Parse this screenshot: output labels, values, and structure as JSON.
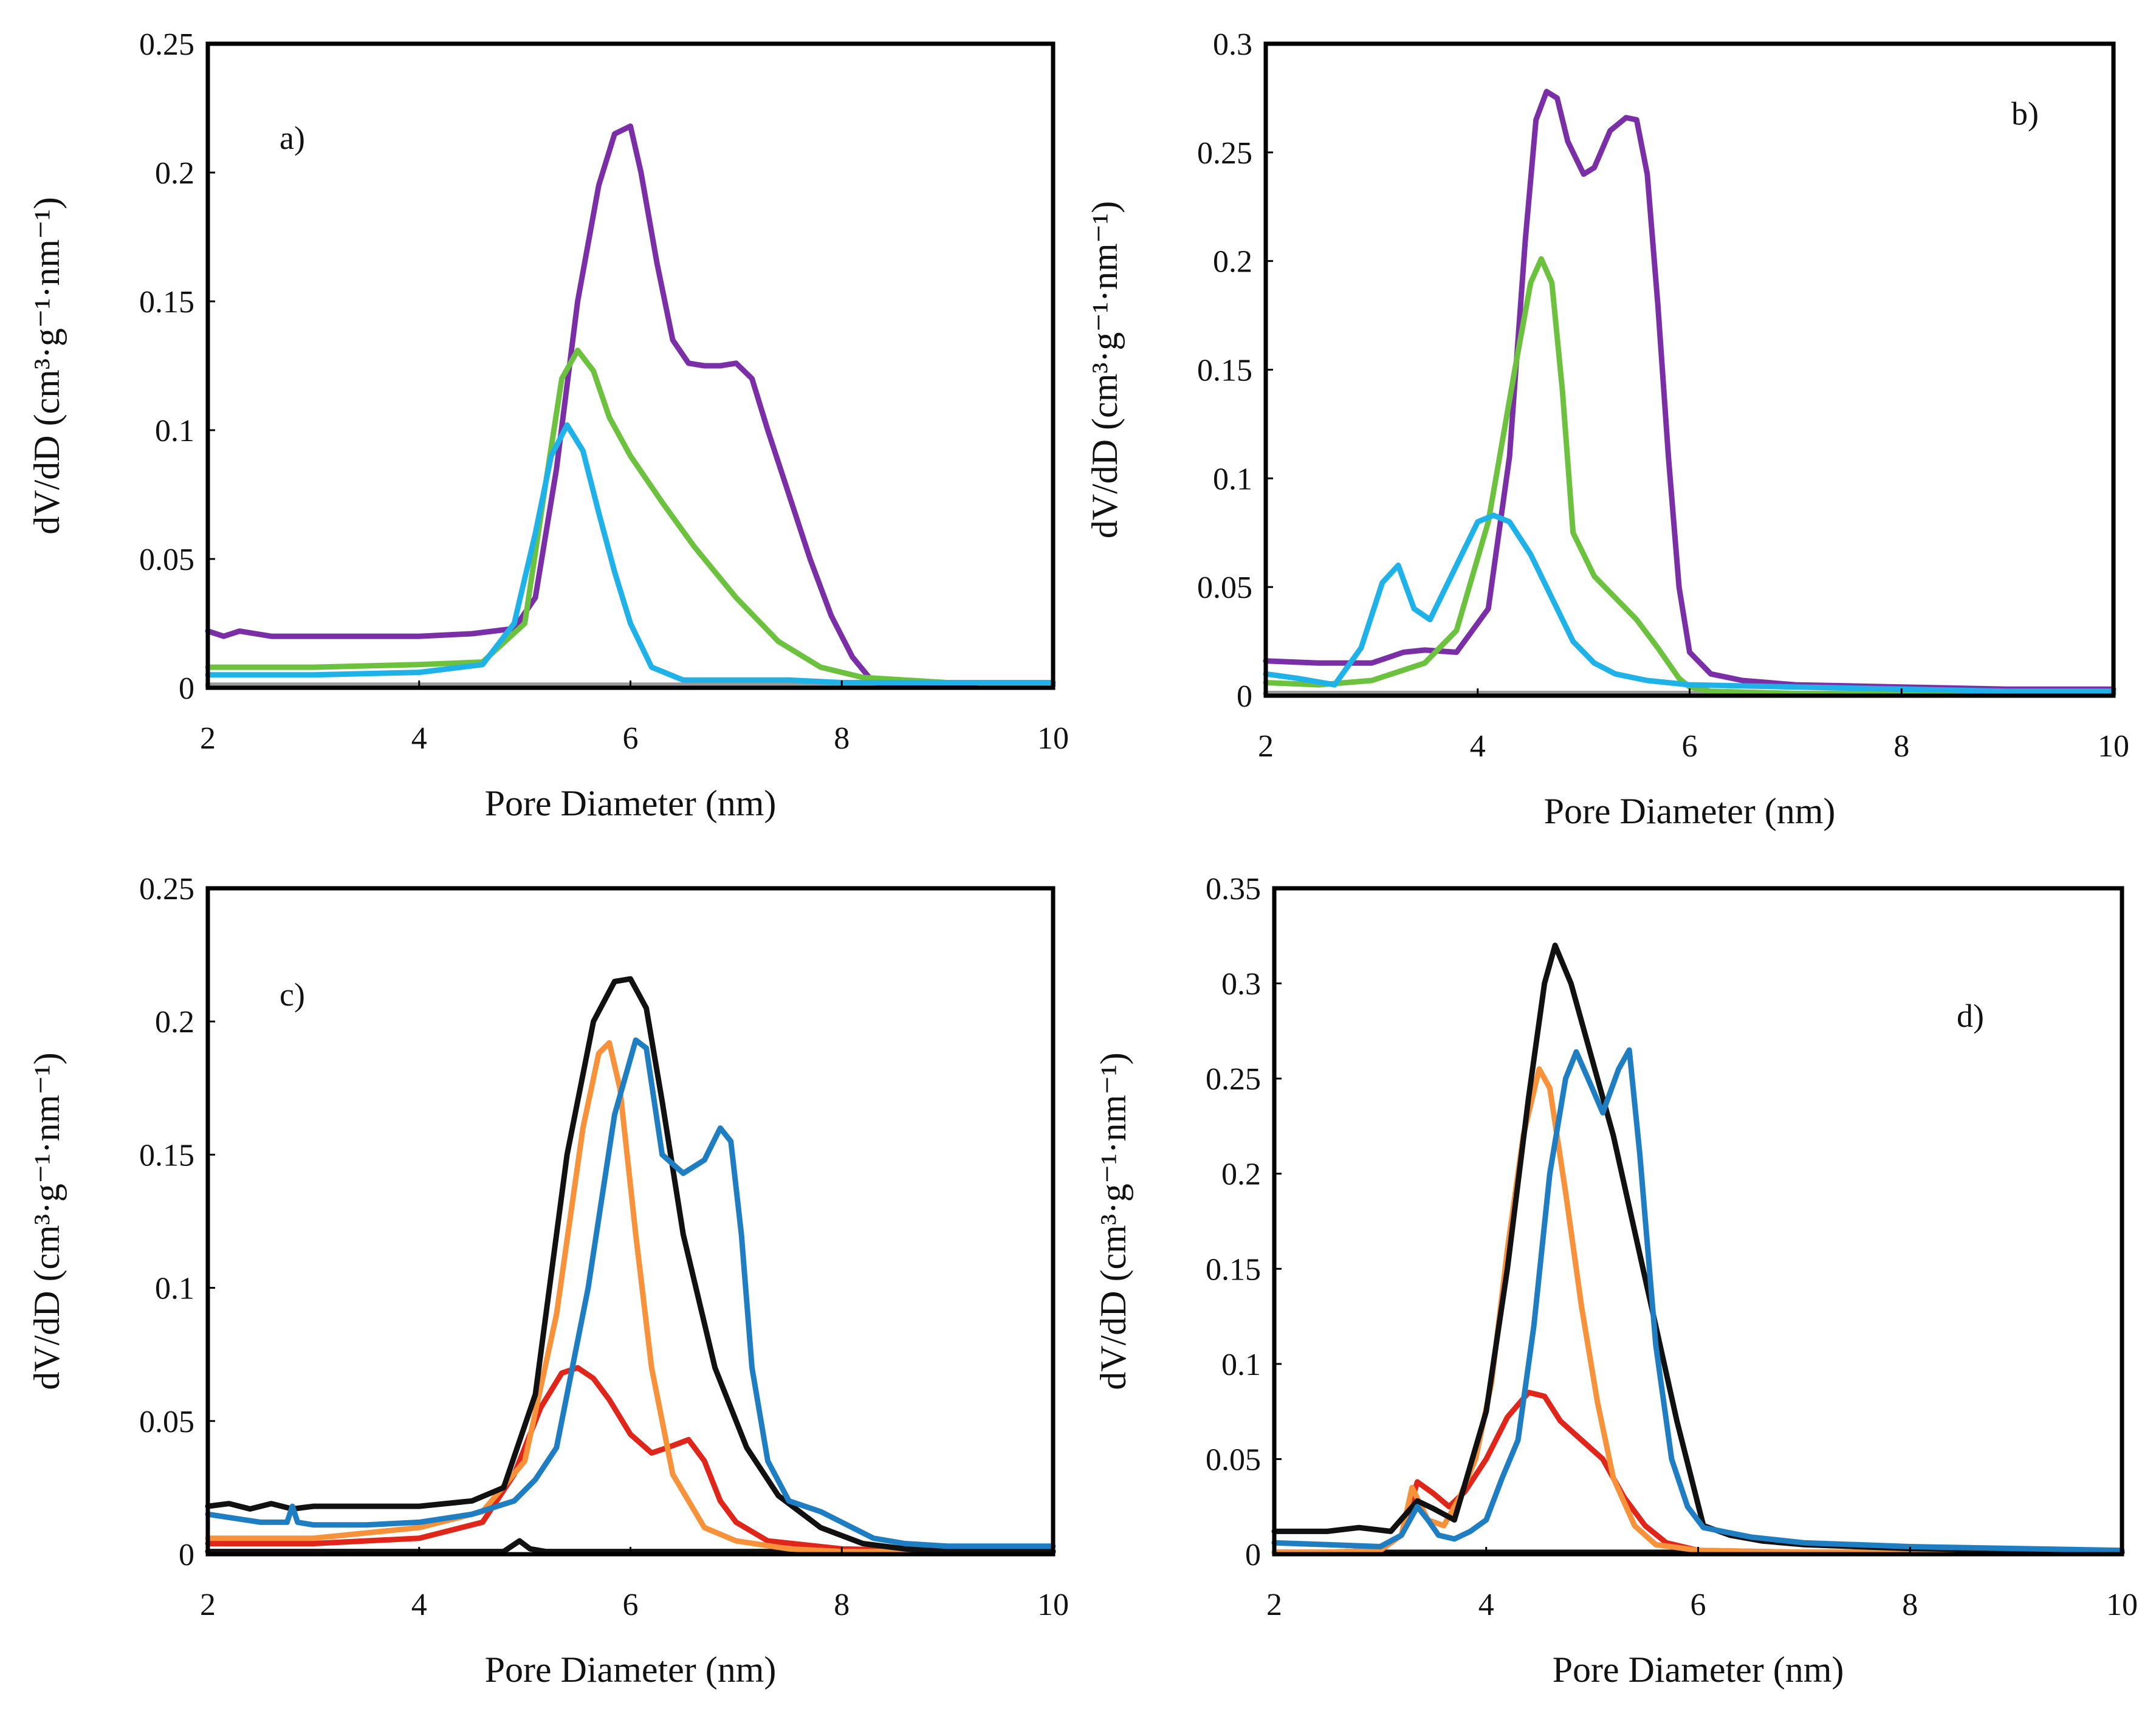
{
  "chart_data": [
    {
      "panel": "a)",
      "type": "line",
      "xlabel": "Pore Diameter (nm)",
      "ylabel": "dV/dD (cm³·g⁻¹·nm⁻¹)",
      "xlim": [
        2,
        10
      ],
      "ylim": [
        0,
        0.25
      ],
      "xticks": [
        "2",
        "4",
        "6",
        "8",
        "10"
      ],
      "yticks": [
        "0",
        "0.05",
        "0.1",
        "0.15",
        "0.2",
        "0.25"
      ],
      "series": [
        {
          "name": "baseline",
          "color": "#9a9a9a",
          "x": [
            2,
            10
          ],
          "y": [
            0.001,
            0.001
          ]
        },
        {
          "name": "purple",
          "color": "#7b2fa6",
          "x": [
            2,
            2.15,
            2.3,
            2.6,
            3,
            3.5,
            4,
            4.5,
            4.9,
            5.1,
            5.3,
            5.5,
            5.7,
            5.85,
            6.0,
            6.1,
            6.25,
            6.4,
            6.55,
            6.7,
            6.85,
            7.0,
            7.15,
            7.3,
            7.5,
            7.7,
            7.9,
            8.1,
            8.3,
            8.6,
            9.0,
            9.3,
            9.6,
            10
          ],
          "y": [
            0.022,
            0.02,
            0.022,
            0.02,
            0.02,
            0.02,
            0.02,
            0.021,
            0.023,
            0.035,
            0.085,
            0.15,
            0.195,
            0.215,
            0.218,
            0.2,
            0.165,
            0.135,
            0.126,
            0.125,
            0.125,
            0.126,
            0.12,
            0.1,
            0.075,
            0.05,
            0.028,
            0.012,
            0.002,
            0.001,
            0.001,
            0.002,
            0.002,
            0.002
          ]
        },
        {
          "name": "green",
          "color": "#6cc23e",
          "x": [
            2,
            3,
            4,
            4.6,
            5.0,
            5.2,
            5.35,
            5.5,
            5.65,
            5.8,
            6.0,
            6.3,
            6.6,
            7.0,
            7.4,
            7.8,
            8.2,
            8.6,
            9.0,
            10
          ],
          "y": [
            0.008,
            0.008,
            0.009,
            0.01,
            0.025,
            0.08,
            0.12,
            0.131,
            0.123,
            0.105,
            0.09,
            0.072,
            0.055,
            0.035,
            0.018,
            0.008,
            0.004,
            0.003,
            0.002,
            0.002
          ]
        },
        {
          "name": "cyan",
          "color": "#1fb2e8",
          "x": [
            2,
            3,
            4,
            4.6,
            4.9,
            5.1,
            5.25,
            5.4,
            5.55,
            5.7,
            5.85,
            6.0,
            6.2,
            6.5,
            7.0,
            7.5,
            8.0,
            9,
            10
          ],
          "y": [
            0.005,
            0.005,
            0.006,
            0.009,
            0.025,
            0.06,
            0.09,
            0.102,
            0.092,
            0.068,
            0.045,
            0.025,
            0.008,
            0.003,
            0.003,
            0.003,
            0.002,
            0.002,
            0.002
          ]
        }
      ]
    },
    {
      "panel": "b)",
      "type": "line",
      "xlabel": "Pore Diameter (nm)",
      "ylabel": "dV/dD (cm³·g⁻¹·nm⁻¹)",
      "xlim": [
        2,
        10
      ],
      "ylim": [
        0,
        0.3
      ],
      "xticks": [
        "2",
        "4",
        "6",
        "8",
        "10"
      ],
      "yticks": [
        "0",
        "0.05",
        "0.1",
        "0.15",
        "0.2",
        "0.25",
        "0.3"
      ],
      "series": [
        {
          "name": "baseline",
          "color": "#9a9a9a",
          "x": [
            2,
            10
          ],
          "y": [
            0.001,
            0.001
          ]
        },
        {
          "name": "purple",
          "color": "#7b2fa6",
          "x": [
            2,
            2.5,
            3.0,
            3.3,
            3.5,
            3.8,
            4.1,
            4.3,
            4.45,
            4.55,
            4.65,
            4.75,
            4.85,
            5.0,
            5.1,
            5.25,
            5.4,
            5.5,
            5.6,
            5.7,
            5.8,
            5.9,
            6.0,
            6.2,
            6.5,
            7.0,
            8,
            9,
            10
          ],
          "y": [
            0.016,
            0.015,
            0.015,
            0.02,
            0.021,
            0.02,
            0.04,
            0.11,
            0.21,
            0.265,
            0.278,
            0.275,
            0.255,
            0.24,
            0.243,
            0.26,
            0.266,
            0.265,
            0.24,
            0.18,
            0.11,
            0.05,
            0.02,
            0.01,
            0.007,
            0.005,
            0.004,
            0.003,
            0.003
          ]
        },
        {
          "name": "green",
          "color": "#6cc23e",
          "x": [
            2,
            2.5,
            3.0,
            3.5,
            3.8,
            4.1,
            4.35,
            4.5,
            4.6,
            4.7,
            4.8,
            4.9,
            5.1,
            5.3,
            5.5,
            5.7,
            5.9,
            6.0,
            6.2,
            7,
            8,
            9,
            10
          ],
          "y": [
            0.006,
            0.005,
            0.007,
            0.015,
            0.03,
            0.08,
            0.15,
            0.19,
            0.201,
            0.19,
            0.14,
            0.075,
            0.055,
            0.045,
            0.035,
            0.022,
            0.008,
            0.004,
            0.002,
            0.001,
            0.001,
            0.001,
            0.001
          ]
        },
        {
          "name": "cyan",
          "color": "#1fb2e8",
          "x": [
            2,
            2.3,
            2.65,
            2.9,
            3.1,
            3.25,
            3.4,
            3.55,
            3.8,
            4.0,
            4.15,
            4.3,
            4.5,
            4.7,
            4.9,
            5.1,
            5.3,
            5.6,
            6.0,
            7,
            8,
            9,
            10
          ],
          "y": [
            0.01,
            0.008,
            0.005,
            0.022,
            0.052,
            0.06,
            0.04,
            0.035,
            0.06,
            0.08,
            0.083,
            0.08,
            0.065,
            0.045,
            0.025,
            0.015,
            0.01,
            0.007,
            0.005,
            0.004,
            0.003,
            0.002,
            0.002
          ]
        }
      ]
    },
    {
      "panel": "c)",
      "type": "line",
      "xlabel": "Pore Diameter (nm)",
      "ylabel": "dV/dD (cm³·g⁻¹·nm⁻¹)",
      "xlim": [
        2,
        10
      ],
      "ylim": [
        0,
        0.25
      ],
      "xticks": [
        "2",
        "4",
        "6",
        "8",
        "10"
      ],
      "yticks": [
        "0",
        "0.05",
        "0.1",
        "0.15",
        "0.2",
        "0.25"
      ],
      "series": [
        {
          "name": "black-baseline",
          "color": "#111111",
          "x": [
            2,
            4.8,
            4.95,
            5.05,
            5.2,
            10
          ],
          "y": [
            0.001,
            0.001,
            0.005,
            0.002,
            0.001,
            0.001
          ]
        },
        {
          "name": "red",
          "color": "#e0261b",
          "x": [
            2,
            3,
            4,
            4.6,
            4.9,
            5.15,
            5.35,
            5.5,
            5.65,
            5.8,
            6.0,
            6.2,
            6.35,
            6.55,
            6.7,
            6.85,
            7.0,
            7.3,
            8,
            9,
            10
          ],
          "y": [
            0.004,
            0.004,
            0.006,
            0.012,
            0.03,
            0.055,
            0.068,
            0.07,
            0.066,
            0.058,
            0.045,
            0.038,
            0.04,
            0.043,
            0.035,
            0.02,
            0.012,
            0.005,
            0.002,
            0.001,
            0.001
          ]
        },
        {
          "name": "orange",
          "color": "#f7913a",
          "x": [
            2,
            3,
            4,
            4.6,
            5.0,
            5.3,
            5.55,
            5.7,
            5.8,
            5.9,
            6.05,
            6.2,
            6.4,
            6.7,
            7.0,
            7.5,
            8,
            9,
            10
          ],
          "y": [
            0.006,
            0.006,
            0.01,
            0.016,
            0.035,
            0.09,
            0.16,
            0.188,
            0.192,
            0.175,
            0.12,
            0.07,
            0.03,
            0.01,
            0.005,
            0.002,
            0.001,
            0.001,
            0.001
          ]
        },
        {
          "name": "black",
          "color": "#111111",
          "x": [
            2,
            2.2,
            2.4,
            2.6,
            2.8,
            3,
            3.5,
            4,
            4.5,
            4.8,
            5.1,
            5.4,
            5.65,
            5.85,
            6.0,
            6.15,
            6.3,
            6.5,
            6.8,
            7.1,
            7.4,
            7.8,
            8.2,
            8.6,
            9,
            10
          ],
          "y": [
            0.018,
            0.019,
            0.017,
            0.019,
            0.017,
            0.018,
            0.018,
            0.018,
            0.02,
            0.025,
            0.06,
            0.15,
            0.2,
            0.215,
            0.216,
            0.205,
            0.17,
            0.12,
            0.07,
            0.04,
            0.022,
            0.01,
            0.004,
            0.002,
            0.001,
            0.001
          ]
        },
        {
          "name": "blue",
          "color": "#1f7ec2",
          "x": [
            2,
            2.5,
            2.75,
            2.8,
            2.85,
            3.0,
            3.5,
            4.0,
            4.5,
            4.9,
            5.1,
            5.3,
            5.6,
            5.85,
            6.05,
            6.15,
            6.3,
            6.5,
            6.7,
            6.85,
            6.95,
            7.05,
            7.15,
            7.3,
            7.5,
            7.8,
            8.0,
            8.3,
            8.6,
            9,
            10
          ],
          "y": [
            0.015,
            0.012,
            0.012,
            0.018,
            0.012,
            0.011,
            0.011,
            0.012,
            0.015,
            0.02,
            0.028,
            0.04,
            0.1,
            0.165,
            0.193,
            0.19,
            0.15,
            0.143,
            0.148,
            0.16,
            0.155,
            0.12,
            0.07,
            0.035,
            0.02,
            0.016,
            0.012,
            0.006,
            0.004,
            0.003,
            0.003
          ]
        }
      ]
    },
    {
      "panel": "d)",
      "type": "line",
      "xlabel": "Pore Diameter (nm)",
      "ylabel": "dV/dD (cm³·g⁻¹·nm⁻¹)",
      "xlim": [
        2,
        10
      ],
      "ylim": [
        0,
        0.35
      ],
      "xticks": [
        "2",
        "4",
        "6",
        "8",
        "10"
      ],
      "yticks": [
        "0",
        "0.05",
        "0.1",
        "0.15",
        "0.2",
        "0.25",
        "0.3",
        "0.35"
      ],
      "series": [
        {
          "name": "black-baseline",
          "color": "#111111",
          "x": [
            2,
            10
          ],
          "y": [
            0.001,
            0.001
          ]
        },
        {
          "name": "red",
          "color": "#e0261b",
          "x": [
            2,
            2.5,
            3.0,
            3.2,
            3.35,
            3.5,
            3.65,
            3.8,
            4.0,
            4.2,
            4.4,
            4.55,
            4.7,
            4.9,
            5.1,
            5.3,
            5.5,
            5.7,
            6.0,
            7,
            8,
            9,
            10
          ],
          "y": [
            0.001,
            0.001,
            0.002,
            0.01,
            0.038,
            0.032,
            0.025,
            0.033,
            0.05,
            0.072,
            0.085,
            0.083,
            0.07,
            0.06,
            0.05,
            0.03,
            0.015,
            0.006,
            0.002,
            0.001,
            0.001,
            0.001,
            0.001
          ]
        },
        {
          "name": "orange",
          "color": "#f7913a",
          "x": [
            2,
            2.5,
            3.0,
            3.2,
            3.3,
            3.45,
            3.6,
            3.75,
            3.9,
            4.05,
            4.2,
            4.35,
            4.5,
            4.6,
            4.75,
            4.9,
            5.05,
            5.2,
            5.4,
            5.6,
            6.0,
            7,
            8,
            9,
            10
          ],
          "y": [
            0.001,
            0.001,
            0.002,
            0.01,
            0.035,
            0.018,
            0.015,
            0.03,
            0.05,
            0.09,
            0.16,
            0.22,
            0.255,
            0.245,
            0.19,
            0.13,
            0.08,
            0.04,
            0.015,
            0.005,
            0.002,
            0.001,
            0.001,
            0.001,
            0.001
          ]
        },
        {
          "name": "black",
          "color": "#111111",
          "x": [
            2,
            2.5,
            2.8,
            3.1,
            3.35,
            3.5,
            3.7,
            4.0,
            4.2,
            4.4,
            4.55,
            4.65,
            4.8,
            5.0,
            5.2,
            5.4,
            5.6,
            5.8,
            6.05,
            6.3,
            6.6,
            7.0,
            7.5,
            8,
            9,
            10
          ],
          "y": [
            0.012,
            0.012,
            0.014,
            0.012,
            0.028,
            0.024,
            0.018,
            0.075,
            0.15,
            0.24,
            0.3,
            0.32,
            0.3,
            0.26,
            0.22,
            0.17,
            0.12,
            0.07,
            0.015,
            0.01,
            0.007,
            0.005,
            0.004,
            0.003,
            0.002,
            0.001
          ]
        },
        {
          "name": "blue",
          "color": "#1f7ec2",
          "x": [
            2,
            2.5,
            3.0,
            3.2,
            3.35,
            3.45,
            3.55,
            3.7,
            3.85,
            4.0,
            4.15,
            4.3,
            4.45,
            4.6,
            4.75,
            4.85,
            5.0,
            5.1,
            5.25,
            5.35,
            5.45,
            5.6,
            5.75,
            5.9,
            6.05,
            6.5,
            7,
            8,
            9,
            10
          ],
          "y": [
            0.006,
            0.005,
            0.004,
            0.01,
            0.025,
            0.018,
            0.01,
            0.008,
            0.012,
            0.018,
            0.04,
            0.06,
            0.12,
            0.2,
            0.25,
            0.264,
            0.245,
            0.232,
            0.255,
            0.265,
            0.21,
            0.11,
            0.05,
            0.025,
            0.014,
            0.009,
            0.006,
            0.004,
            0.003,
            0.002
          ]
        }
      ]
    }
  ]
}
